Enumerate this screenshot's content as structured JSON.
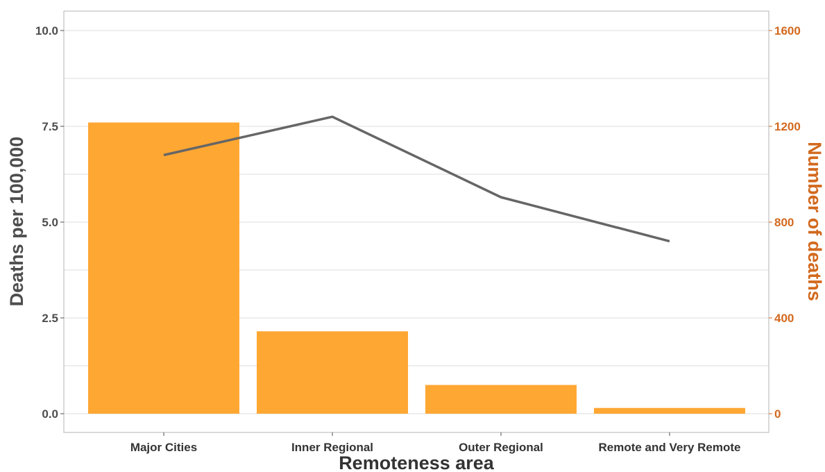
{
  "chart_data": {
    "type": "bar",
    "categories": [
      "Major Cities",
      "Inner Regional",
      "Outer Regional",
      "Remote and Very Remote"
    ],
    "xlabel": "Remoteness area",
    "ylabel": "Deaths per 100,000",
    "y2label": "Number of deaths",
    "ylim": [
      0,
      10
    ],
    "y2lim": [
      0,
      1600
    ],
    "yticks": [
      "0.0",
      "2.5",
      "5.0",
      "7.5",
      "10.0"
    ],
    "y2ticks": [
      "0",
      "400",
      "800",
      "1200",
      "1600"
    ],
    "series": [
      {
        "type": "bar",
        "axis": "left",
        "color": "#ffa733",
        "values": [
          7.6,
          2.15,
          0.75,
          0.15
        ]
      },
      {
        "type": "line",
        "axis": "left",
        "color": "#666666",
        "values": [
          6.75,
          7.75,
          5.65,
          4.5
        ]
      }
    ],
    "grid": true,
    "legend": "none"
  }
}
